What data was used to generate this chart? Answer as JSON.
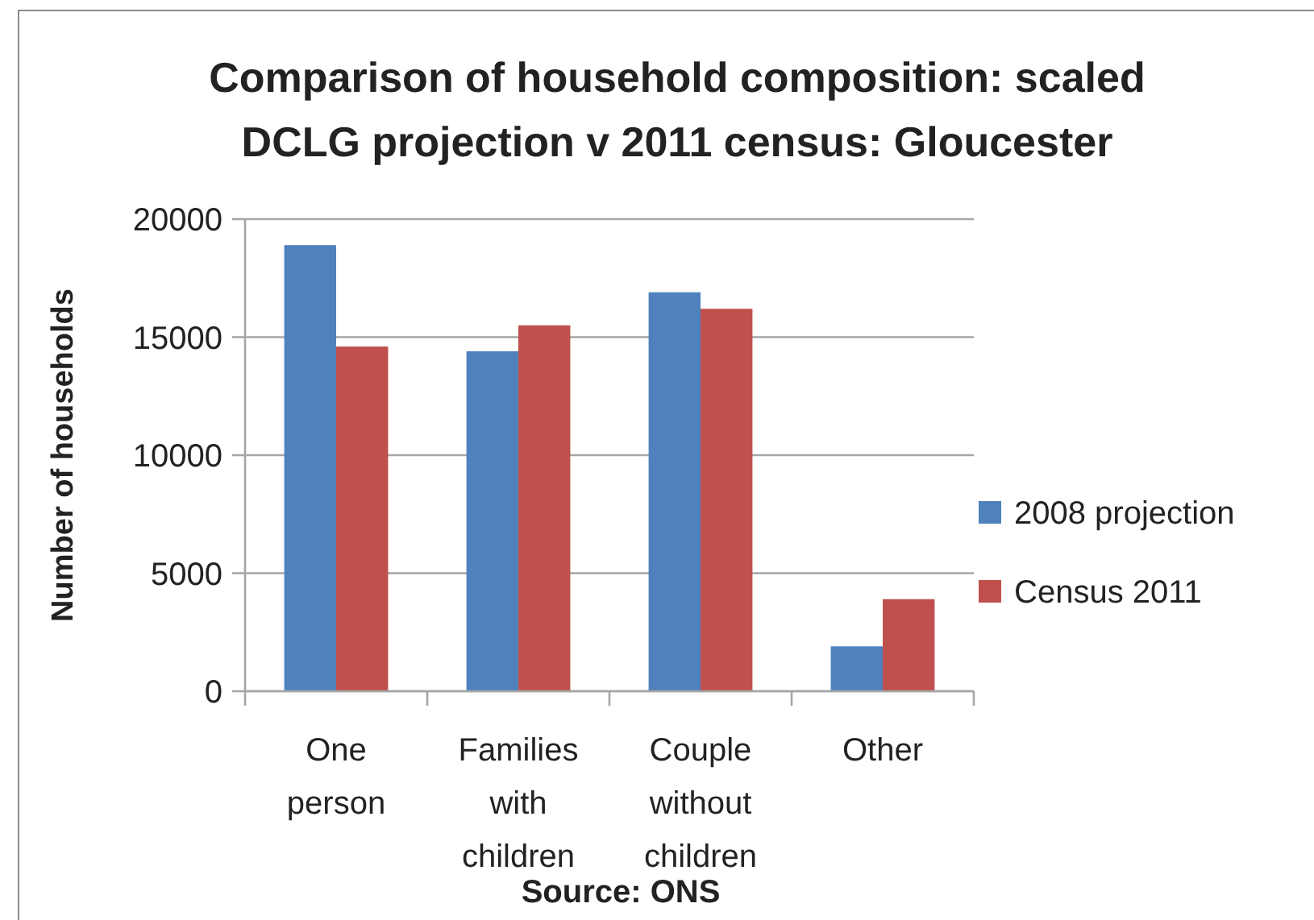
{
  "chart_data": {
    "type": "bar",
    "title": "Comparison of household composition: scaled DCLG projection v 2011 census: Gloucester",
    "ylabel": "Number of households",
    "categories": [
      "One person",
      "Families with children",
      "Couple without children",
      "Other"
    ],
    "series": [
      {
        "name": "2008 projection",
        "color": "#4f81bd",
        "values": [
          18900,
          14400,
          16900,
          1900
        ]
      },
      {
        "name": "Census 2011",
        "color": "#c0504d",
        "values": [
          14600,
          15500,
          16200,
          3900
        ]
      }
    ],
    "ylim": [
      0,
      20000
    ],
    "yticks": [
      0,
      5000,
      10000,
      15000,
      20000
    ],
    "grid": "y",
    "legend": "right",
    "annotations": [
      "Source: ONS"
    ]
  }
}
